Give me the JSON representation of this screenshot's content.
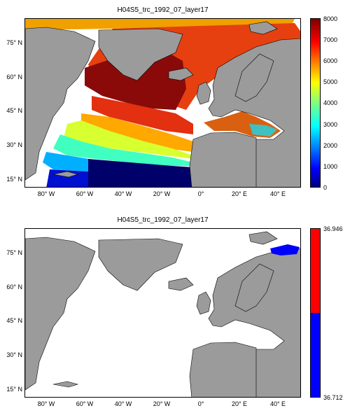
{
  "panels": [
    {
      "title": "H04S5_trc_1992_07_layer17",
      "y_ticks": [
        "75° N",
        "60° N",
        "45° N",
        "30° N",
        "15° N"
      ],
      "x_ticks": [
        "80° W",
        "60° W",
        "40° W",
        "20° W",
        "0°",
        "20° E",
        "40° E"
      ],
      "colorbar": {
        "ticks": [
          "8000",
          "7000",
          "6000",
          "5000",
          "4000",
          "3000",
          "2000",
          "1000",
          "0"
        ],
        "colormap": "jet",
        "range": [
          0,
          8000
        ]
      }
    },
    {
      "title": "H04S5_trc_1992_07_layer17",
      "y_ticks": [
        "75° N",
        "60° N",
        "45° N",
        "30° N",
        "15° N"
      ],
      "x_ticks": [
        "80° W",
        "60° W",
        "40° W",
        "20° W",
        "0°",
        "20° E",
        "40° E"
      ],
      "colorbar": {
        "ticks": [
          "36.946",
          "36.712"
        ],
        "colors": [
          "#ff0000",
          "#0000ff"
        ]
      }
    }
  ],
  "colors": {
    "land": "#9b9b9b",
    "ocean": "#ffffff",
    "coast": "#000000"
  }
}
